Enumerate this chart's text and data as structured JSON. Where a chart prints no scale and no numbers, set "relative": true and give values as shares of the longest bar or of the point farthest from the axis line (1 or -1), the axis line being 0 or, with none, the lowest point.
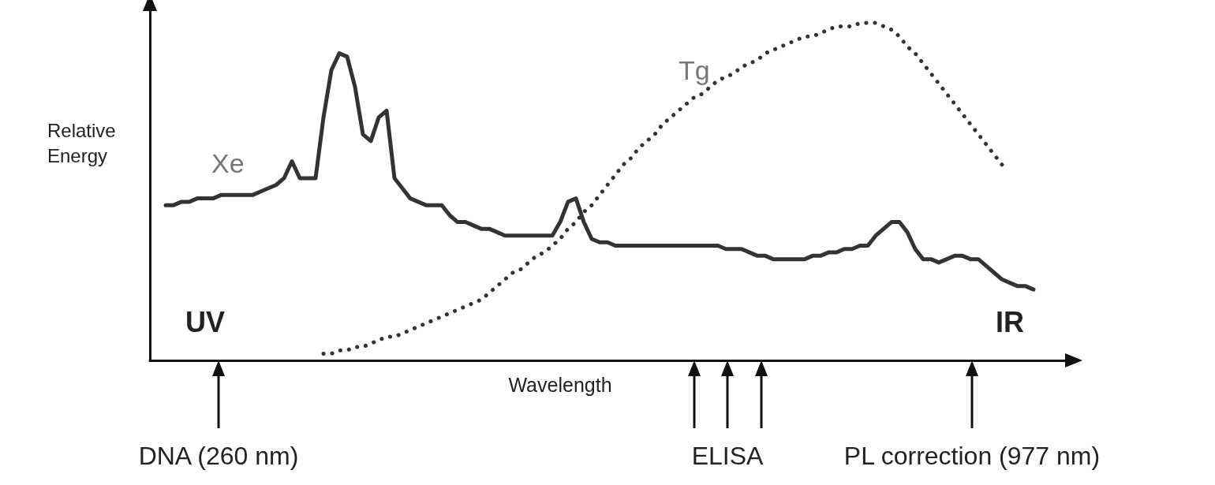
{
  "chart_data": {
    "type": "line",
    "relative": true,
    "marker": "none",
    "xlabel": "Wavelength",
    "ylabel": "Relative Energy",
    "annotations": [
      "UV",
      "IR",
      "DNA (260 nm)",
      "ELISA",
      "PL correction (977 nm)"
    ],
    "categories": [
      null,
      null,
      null,
      null,
      null,
      null,
      null,
      null,
      null,
      null,
      null,
      null,
      null,
      null,
      null,
      null,
      null,
      null,
      null,
      null,
      null,
      null,
      null,
      null,
      null,
      null,
      null,
      null,
      null,
      null,
      null,
      null,
      null,
      null,
      null,
      null,
      null,
      null,
      null,
      null,
      null,
      null,
      null,
      null,
      null,
      null,
      null,
      null,
      null,
      null,
      null,
      null,
      null,
      null,
      null,
      null,
      null,
      null,
      null,
      null,
      null,
      null,
      null,
      null,
      null,
      null,
      null,
      null,
      null,
      null,
      null,
      null,
      null,
      null,
      null,
      null,
      null,
      null,
      null,
      null,
      null,
      null,
      null,
      null,
      null,
      null,
      null,
      null,
      null,
      null,
      null,
      null,
      null,
      null,
      null,
      null,
      null,
      null,
      null,
      null,
      null,
      null,
      null,
      null,
      null,
      null,
      null,
      null,
      null,
      null,
      null,
      null,
      null,
      null,
      null,
      null,
      null
    ],
    "series": [
      {
        "name": "Xe",
        "color": "#333333",
        "line_style": "solid",
        "values": [
          null,
          null,
          0.46,
          0.46,
          0.47,
          0.47,
          0.48,
          0.48,
          0.48,
          0.49,
          0.49,
          0.49,
          0.49,
          0.49,
          0.5,
          0.51,
          0.52,
          0.54,
          0.59,
          0.54,
          0.54,
          0.54,
          0.72,
          0.86,
          0.91,
          0.9,
          0.81,
          0.67,
          0.65,
          0.72,
          0.74,
          0.54,
          0.51,
          0.48,
          0.47,
          0.46,
          0.46,
          0.46,
          0.43,
          0.41,
          0.41,
          0.4,
          0.39,
          0.39,
          0.38,
          0.37,
          0.37,
          0.37,
          0.37,
          0.37,
          0.37,
          0.37,
          0.41,
          0.47,
          0.48,
          0.41,
          0.36,
          0.35,
          0.35,
          0.34,
          0.34,
          0.34,
          0.34,
          0.34,
          0.34,
          0.34,
          0.34,
          0.34,
          0.34,
          0.34,
          0.34,
          0.34,
          0.34,
          0.33,
          0.33,
          0.33,
          0.32,
          0.31,
          0.31,
          0.3,
          0.3,
          0.3,
          0.3,
          0.3,
          0.31,
          0.31,
          0.32,
          0.32,
          0.33,
          0.33,
          0.34,
          0.34,
          0.37,
          0.39,
          0.41,
          0.41,
          0.38,
          0.33,
          0.3,
          0.3,
          0.29,
          0.3,
          0.31,
          0.31,
          0.3,
          0.3,
          0.28,
          0.26,
          0.24,
          0.23,
          0.22,
          0.22,
          0.21,
          null,
          null,
          null,
          null
        ]
      },
      {
        "name": "Tg",
        "color": "#333333",
        "line_style": "dotted",
        "values": [
          null,
          null,
          null,
          null,
          null,
          null,
          null,
          null,
          null,
          null,
          null,
          null,
          null,
          null,
          null,
          null,
          null,
          null,
          null,
          null,
          null,
          null,
          0.02,
          0.02,
          0.03,
          0.03,
          0.04,
          0.04,
          0.05,
          0.06,
          0.07,
          0.07,
          0.08,
          0.09,
          0.1,
          0.11,
          0.12,
          0.13,
          0.14,
          0.15,
          0.16,
          0.17,
          0.18,
          0.2,
          0.22,
          0.24,
          0.26,
          0.27,
          0.29,
          0.31,
          0.32,
          0.34,
          0.36,
          0.39,
          0.41,
          0.44,
          0.46,
          0.49,
          0.52,
          0.55,
          0.58,
          0.6,
          0.63,
          0.65,
          0.67,
          0.7,
          0.72,
          0.74,
          0.76,
          0.78,
          0.79,
          0.81,
          0.83,
          0.84,
          0.85,
          0.87,
          0.88,
          0.89,
          0.91,
          0.92,
          0.93,
          0.94,
          0.95,
          0.96,
          0.96,
          0.97,
          0.98,
          0.99,
          0.99,
          0.99,
          1.0,
          1.0,
          1.0,
          0.99,
          0.98,
          0.96,
          0.93,
          0.91,
          0.88,
          0.85,
          0.82,
          0.79,
          0.76,
          0.73,
          0.7,
          0.67,
          0.64,
          0.61,
          0.58,
          null,
          null,
          null,
          null,
          null,
          null,
          null,
          null
        ]
      }
    ]
  }
}
